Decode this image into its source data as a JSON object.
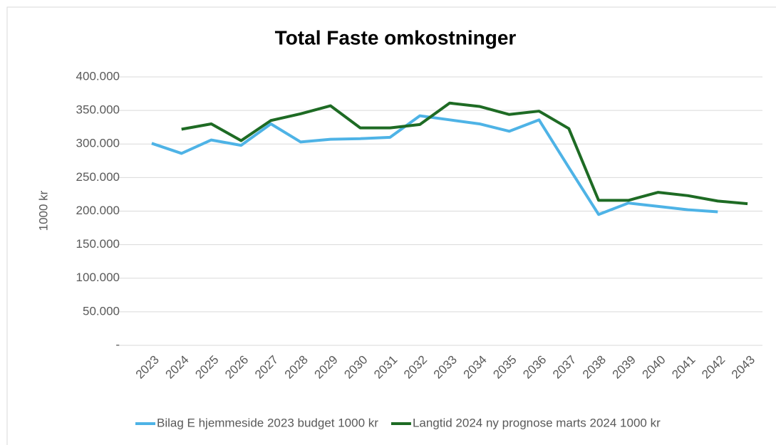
{
  "chart_data": {
    "type": "line",
    "title": "Total Faste omkostninger",
    "y_label": "1000 kr",
    "categories": [
      "2023",
      "2024",
      "2025",
      "2026",
      "2027",
      "2028",
      "2029",
      "2030",
      "2031",
      "2032",
      "2033",
      "2034",
      "2035",
      "2036",
      "2037",
      "2038",
      "2039",
      "2040",
      "2041",
      "2042",
      "2043"
    ],
    "series": [
      {
        "name": "Bilag E hjemmeside 2023 budget 1000 kr",
        "color": "#4eb3e6",
        "values": [
          301000,
          286000,
          306000,
          298000,
          330000,
          303000,
          307000,
          308000,
          310000,
          342000,
          336000,
          330000,
          319000,
          336000,
          265000,
          195000,
          212000,
          207000,
          202000,
          199000,
          null
        ]
      },
      {
        "name": "Langtid 2024 ny prognose marts 2024 1000 kr",
        "color": "#1e6b24",
        "values": [
          null,
          322000,
          330000,
          305000,
          335000,
          345000,
          357000,
          324000,
          324000,
          329000,
          361000,
          356000,
          344000,
          349000,
          323000,
          216000,
          216000,
          228000,
          223000,
          215000,
          211000
        ]
      }
    ],
    "ylim": [
      0,
      400000
    ],
    "yticks": [
      {
        "value": 0,
        "label": "-"
      },
      {
        "value": 50000,
        "label": "50.000"
      },
      {
        "value": 100000,
        "label": "100.000"
      },
      {
        "value": 150000,
        "label": "150.000"
      },
      {
        "value": 200000,
        "label": "200.000"
      },
      {
        "value": 250000,
        "label": "250.000"
      },
      {
        "value": 300000,
        "label": "300.000"
      },
      {
        "value": 350000,
        "label": "350.000"
      },
      {
        "value": 400000,
        "label": "400.000"
      }
    ],
    "grid": true,
    "legend": "bottom"
  }
}
